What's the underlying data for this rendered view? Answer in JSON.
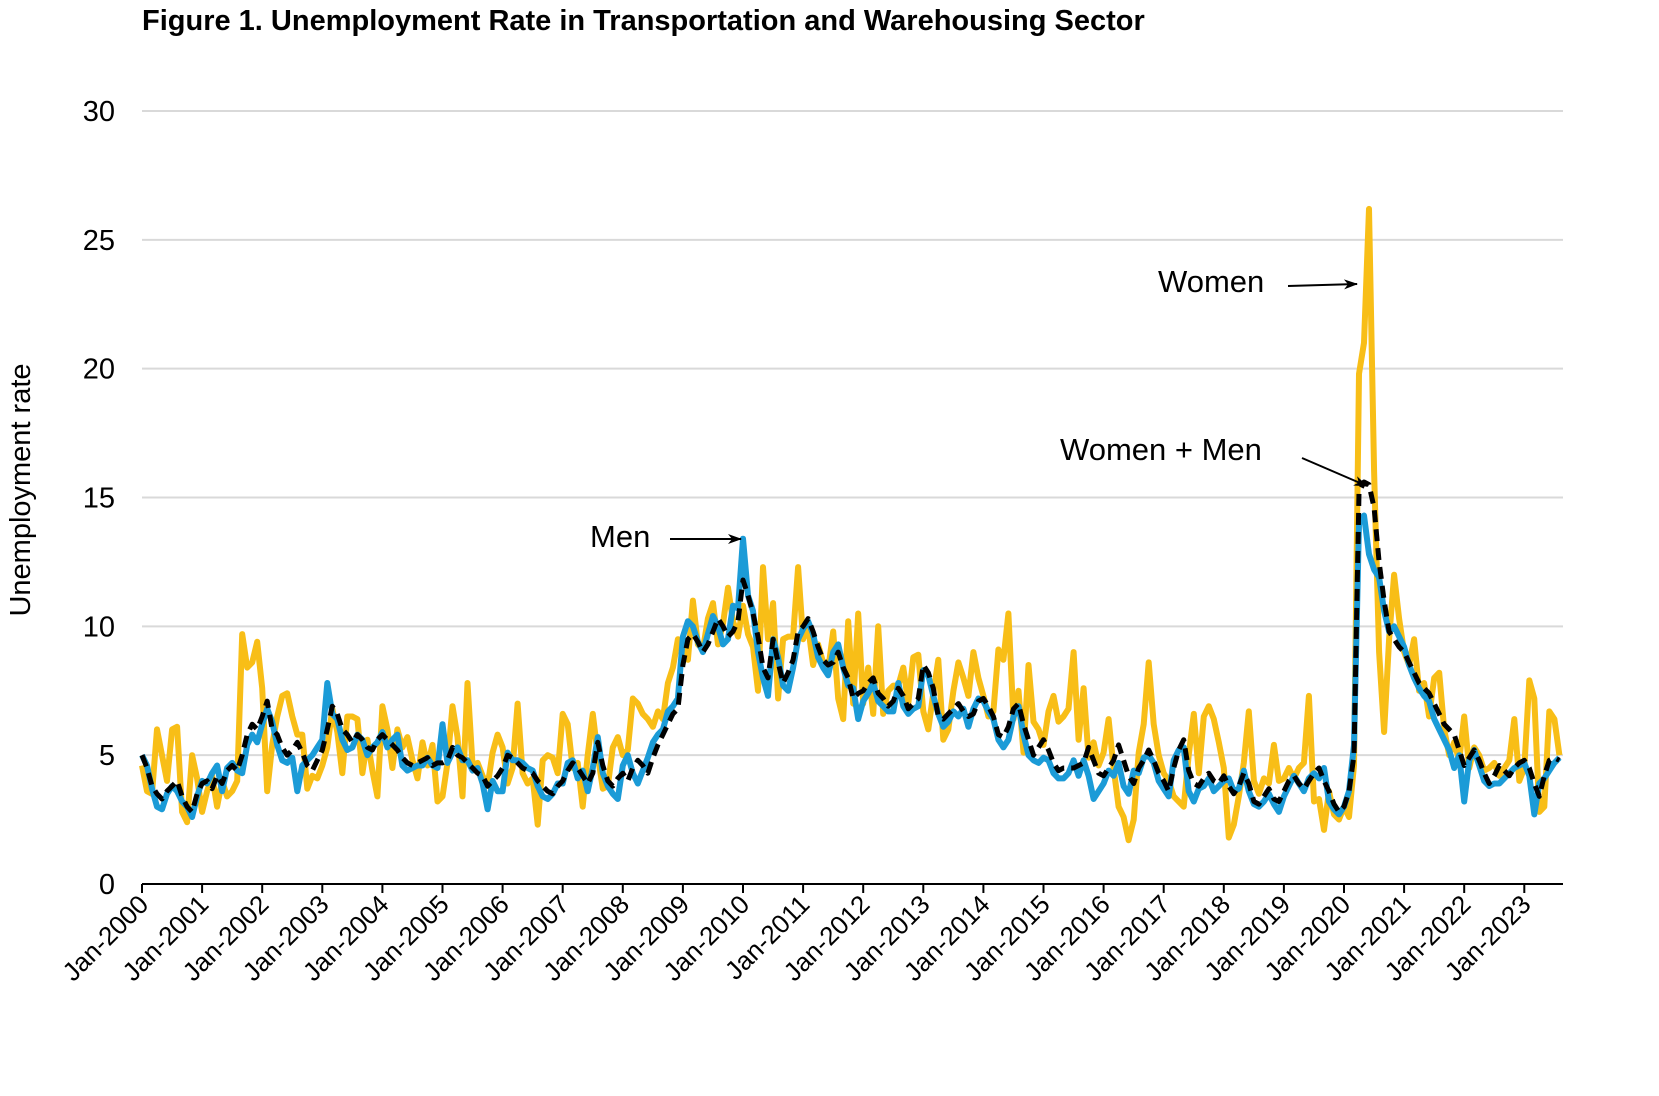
{
  "chart_data": {
    "type": "line",
    "title": "Figure 1. Unemployment Rate in Transportation and Warehousing Sector",
    "xlabel": "",
    "ylabel": "Unemployment rate",
    "ylim": [
      0,
      30
    ],
    "yticks": [
      "0",
      "5",
      "10",
      "15",
      "20",
      "25",
      "30"
    ],
    "x_start": "Jan-2000",
    "x_frequency": "monthly",
    "xticks": [
      "Jan-2000",
      "Jan-2001",
      "Jan-2002",
      "Jan-2003",
      "Jan-2004",
      "Jan-2005",
      "Jan-2006",
      "Jan-2007",
      "Jan-2008",
      "Jan-2009",
      "Jan-2010",
      "Jan-2011",
      "Jan-2012",
      "Jan-2013",
      "Jan-2014",
      "Jan-2015",
      "Jan-2016",
      "Jan-2017",
      "Jan-2018",
      "Jan-2019",
      "Jan-2020",
      "Jan-2021",
      "Jan-2022",
      "Jan-2023"
    ],
    "grid": true,
    "series": [
      {
        "name": "Women",
        "color": "#F8BE17",
        "style": "solid",
        "values": [
          4.6,
          3.6,
          3.5,
          6.0,
          5.0,
          4.0,
          6.0,
          6.1,
          2.8,
          2.4,
          5.0,
          4.1,
          2.8,
          3.6,
          4.2,
          3.0,
          4.0,
          3.4,
          3.6,
          4.0,
          9.7,
          8.4,
          8.6,
          9.4,
          7.6,
          3.6,
          5.4,
          6.5,
          7.3,
          7.4,
          6.5,
          5.8,
          5.8,
          3.7,
          4.2,
          4.1,
          4.6,
          5.3,
          6.8,
          5.9,
          4.3,
          6.5,
          6.5,
          6.4,
          4.3,
          5.6,
          4.4,
          3.4,
          6.9,
          6.0,
          4.5,
          6.0,
          5.3,
          5.7,
          4.8,
          4.1,
          5.5,
          4.6,
          5.4,
          3.2,
          3.4,
          4.7,
          6.9,
          5.7,
          3.4,
          7.8,
          4.6,
          4.7,
          4.2,
          3.8,
          5.1,
          5.8,
          5.3,
          3.9,
          4.5,
          7.0,
          4.3,
          3.9,
          4.1,
          2.3,
          4.8,
          5.0,
          4.9,
          4.3,
          6.6,
          6.2,
          4.5,
          4.7,
          3.0,
          5.0,
          6.6,
          5.0,
          3.7,
          3.8,
          5.3,
          5.7,
          5.0,
          5.2,
          7.2,
          7.0,
          6.6,
          6.4,
          6.1,
          6.7,
          6.4,
          7.8,
          8.4,
          9.5,
          9.4,
          8.7,
          11.0,
          9.3,
          9.1,
          10.3,
          10.9,
          9.3,
          10.1,
          11.5,
          10.2,
          9.6,
          10.8,
          9.7,
          9.2,
          7.5,
          12.3,
          9.5,
          10.9,
          7.2,
          9.5,
          9.6,
          9.6,
          12.3,
          9.5,
          10.0,
          8.5,
          9.3,
          8.6,
          8.3,
          9.8,
          7.2,
          6.4,
          10.2,
          7.0,
          10.5,
          7.0,
          8.4,
          6.6,
          10.0,
          6.6,
          7.5,
          7.7,
          7.7,
          8.4,
          7.0,
          8.8,
          8.9,
          6.7,
          6.0,
          7.4,
          8.7,
          5.6,
          6.0,
          7.5,
          8.6,
          8.0,
          7.3,
          9.0,
          8.0,
          7.3,
          6.5,
          6.7,
          9.1,
          8.7,
          10.5,
          6.4,
          7.5,
          5.1,
          8.5,
          6.3,
          6.0,
          5.4,
          6.7,
          7.3,
          6.3,
          6.5,
          6.8,
          9.0,
          5.6,
          7.6,
          4.9,
          5.5,
          4.6,
          5.1,
          6.4,
          4.5,
          3.0,
          2.6,
          1.7,
          2.5,
          5.1,
          6.2,
          8.6,
          6.2,
          5.0,
          4.3,
          4.0,
          3.4,
          3.2,
          3.0,
          5.0,
          6.6,
          4.3,
          6.5,
          6.9,
          6.4,
          5.5,
          4.5,
          1.8,
          2.3,
          3.4,
          4.7,
          6.7,
          4.0,
          3.5,
          4.1,
          3.9,
          5.4,
          4.0,
          4.1,
          4.5,
          4.1,
          4.5,
          4.7,
          7.3,
          3.2,
          3.3,
          2.1,
          3.6,
          2.7,
          2.5,
          3.0,
          2.6,
          4.6,
          19.8,
          21.0,
          26.2,
          16.0,
          9.0,
          5.9,
          9.5,
          12.0,
          10.3,
          9.0,
          8.5,
          9.5,
          7.5,
          7.8,
          6.5,
          8.0,
          8.2,
          6.0,
          5.0,
          5.5,
          4.8,
          6.5,
          4.5,
          5.3,
          5.0,
          4.4,
          4.5,
          4.7,
          4.2,
          4.5,
          4.8,
          6.4,
          4.0,
          4.5,
          7.9,
          7.2,
          2.8,
          3.0,
          6.7,
          6.4,
          5.0
        ]
      },
      {
        "name": "Men",
        "color": "#1B9BD7",
        "style": "solid",
        "values": [
          5.0,
          4.6,
          3.7,
          3.0,
          2.9,
          3.5,
          3.8,
          3.6,
          3.2,
          3.0,
          2.6,
          3.4,
          4.0,
          3.9,
          4.3,
          4.6,
          3.6,
          4.5,
          4.7,
          4.4,
          4.3,
          5.4,
          5.8,
          5.5,
          6.2,
          6.8,
          6.3,
          5.4,
          4.8,
          4.7,
          4.9,
          3.6,
          4.6,
          4.8,
          5.0,
          5.3,
          5.6,
          7.8,
          6.6,
          6.4,
          5.6,
          5.2,
          5.3,
          5.8,
          5.6,
          5.0,
          5.3,
          5.5,
          5.9,
          5.3,
          5.6,
          5.8,
          4.6,
          4.4,
          4.5,
          4.6,
          4.6,
          4.9,
          4.6,
          4.5,
          6.2,
          4.7,
          5.1,
          5.3,
          4.8,
          4.8,
          4.4,
          4.5,
          3.9,
          2.9,
          4.0,
          3.6,
          3.6,
          5.1,
          4.8,
          4.8,
          4.7,
          4.5,
          4.4,
          3.8,
          3.4,
          3.3,
          3.5,
          3.9,
          3.9,
          4.7,
          4.8,
          4.1,
          4.4,
          3.6,
          4.5,
          5.7,
          4.3,
          3.8,
          3.5,
          3.3,
          4.6,
          5.0,
          4.3,
          3.9,
          4.4,
          4.9,
          5.5,
          5.8,
          6.0,
          6.7,
          6.9,
          7.2,
          9.6,
          10.2,
          10.0,
          9.4,
          9.0,
          9.7,
          10.4,
          10.0,
          9.3,
          9.5,
          10.8,
          10.7,
          13.4,
          11.2,
          10.6,
          9.0,
          8.0,
          7.3,
          9.5,
          8.8,
          7.7,
          7.5,
          8.4,
          9.5,
          9.9,
          10.2,
          9.7,
          8.8,
          8.4,
          8.1,
          9.0,
          9.3,
          8.4,
          7.7,
          7.6,
          6.4,
          7.1,
          7.4,
          7.8,
          7.1,
          6.9,
          6.7,
          6.7,
          7.8,
          6.9,
          6.6,
          6.8,
          6.9,
          8.3,
          8.1,
          7.3,
          6.6,
          6.1,
          6.3,
          6.7,
          6.5,
          6.8,
          6.1,
          6.8,
          7.2,
          7.1,
          6.7,
          6.4,
          5.6,
          5.3,
          5.6,
          6.5,
          6.9,
          5.8,
          5.0,
          4.8,
          4.7,
          4.9,
          4.8,
          4.3,
          4.1,
          4.1,
          4.3,
          4.8,
          4.2,
          4.8,
          4.2,
          3.3,
          3.6,
          3.9,
          4.4,
          4.2,
          4.7,
          3.8,
          3.5,
          4.4,
          4.3,
          4.9,
          5.0,
          4.7,
          4.0,
          3.7,
          3.4,
          4.8,
          5.2,
          5.3,
          3.6,
          3.2,
          3.7,
          3.8,
          4.1,
          3.6,
          3.8,
          4.0,
          4.1,
          3.6,
          3.7,
          4.4,
          3.6,
          3.1,
          3.0,
          3.2,
          3.5,
          3.1,
          2.8,
          3.4,
          3.8,
          4.2,
          3.9,
          3.6,
          4.1,
          4.3,
          4.1,
          4.5,
          3.2,
          2.9,
          2.7,
          3.0,
          3.6,
          5.4,
          14.0,
          14.3,
          12.8,
          12.2,
          11.9,
          10.6,
          9.8,
          10.0,
          9.6,
          9.2,
          8.5,
          8.0,
          7.6,
          7.3,
          7.1,
          6.4,
          6.0,
          5.6,
          5.2,
          4.5,
          5.0,
          3.2,
          4.8,
          5.2,
          4.6,
          4.0,
          3.8,
          3.9,
          3.9,
          4.1,
          4.3,
          4.5,
          4.6,
          4.7,
          4.2,
          2.7,
          3.9,
          4.1,
          4.4,
          4.7,
          4.9
        ]
      },
      {
        "name": "Women + Men",
        "color": "#000000",
        "style": "dashed",
        "values": [
          5.0,
          4.5,
          3.8,
          3.5,
          3.3,
          3.6,
          3.8,
          4.0,
          3.4,
          3.0,
          2.8,
          3.5,
          3.9,
          4.0,
          3.7,
          4.2,
          3.9,
          4.4,
          4.6,
          4.4,
          5.0,
          5.8,
          6.2,
          6.0,
          6.5,
          7.1,
          6.0,
          5.8,
          5.3,
          5.0,
          5.2,
          5.5,
          5.1,
          4.6,
          4.4,
          4.8,
          5.2,
          6.0,
          6.9,
          6.6,
          6.0,
          5.8,
          5.5,
          5.8,
          5.6,
          5.3,
          5.2,
          5.6,
          5.8,
          5.6,
          5.4,
          5.2,
          4.9,
          4.7,
          4.6,
          4.7,
          4.8,
          4.9,
          4.6,
          4.7,
          4.7,
          4.8,
          5.3,
          5.0,
          4.9,
          4.7,
          4.5,
          4.3,
          4.2,
          3.8,
          4.0,
          4.2,
          4.5,
          5.0,
          4.9,
          4.7,
          4.5,
          4.4,
          4.3,
          4.0,
          3.8,
          3.6,
          3.5,
          3.8,
          4.0,
          4.4,
          4.7,
          4.5,
          4.2,
          3.9,
          4.3,
          5.5,
          4.6,
          4.0,
          3.8,
          4.1,
          4.3,
          4.0,
          4.5,
          4.8,
          4.6,
          4.3,
          4.9,
          5.4,
          5.8,
          6.2,
          6.6,
          6.8,
          8.5,
          9.5,
          9.7,
          9.4,
          9.0,
          9.3,
          9.8,
          10.3,
          10.0,
          9.6,
          9.8,
          10.2,
          11.8,
          11.2,
          10.5,
          9.6,
          8.4,
          8.0,
          9.5,
          8.6,
          7.8,
          8.2,
          8.7,
          9.8,
          10.0,
          10.3,
          9.8,
          9.2,
          8.7,
          8.5,
          8.6,
          9.0,
          8.4,
          8.0,
          7.2,
          7.4,
          7.5,
          7.8,
          8.0,
          7.4,
          7.2,
          6.9,
          7.1,
          7.6,
          7.3,
          6.8,
          7.0,
          7.2,
          8.5,
          8.2,
          7.6,
          6.5,
          6.4,
          6.6,
          6.8,
          7.0,
          6.7,
          6.5,
          6.6,
          7.1,
          7.2,
          6.9,
          6.5,
          5.8,
          5.7,
          6.1,
          6.8,
          7.0,
          6.2,
          5.6,
          5.0,
          5.3,
          5.6,
          5.2,
          4.7,
          4.4,
          4.5,
          4.5,
          4.5,
          4.6,
          4.7,
          5.3,
          4.8,
          4.3,
          4.2,
          4.5,
          4.8,
          5.4,
          4.8,
          4.2,
          3.9,
          4.5,
          4.8,
          5.2,
          4.8,
          4.3,
          4.0,
          3.6,
          4.5,
          5.2,
          5.6,
          4.4,
          3.9,
          3.8,
          4.1,
          4.3,
          4.0,
          3.9,
          4.2,
          3.8,
          3.5,
          3.8,
          4.3,
          3.9,
          3.2,
          3.1,
          3.4,
          3.7,
          3.3,
          3.2,
          3.6,
          4.0,
          4.2,
          3.9,
          3.7,
          4.0,
          4.3,
          4.5,
          4.0,
          3.6,
          3.1,
          2.8,
          3.0,
          3.6,
          5.0,
          15.2,
          15.6,
          15.5,
          14.6,
          12.5,
          11.0,
          9.8,
          9.5,
          9.2,
          9.0,
          8.6,
          8.2,
          7.8,
          7.6,
          7.4,
          7.0,
          6.6,
          6.2,
          6.0,
          5.8,
          5.2,
          4.6,
          4.9,
          5.2,
          4.8,
          4.3,
          3.9,
          4.2,
          4.6,
          4.4,
          4.2,
          4.5,
          4.7,
          4.8,
          4.5,
          3.9,
          3.4,
          4.2,
          4.8,
          4.9,
          4.8
        ]
      }
    ],
    "annotations": [
      {
        "text": "Women",
        "series": "Women"
      },
      {
        "text": "Women + Men",
        "series": "Women + Men"
      },
      {
        "text": "Men",
        "series": "Men"
      }
    ]
  }
}
